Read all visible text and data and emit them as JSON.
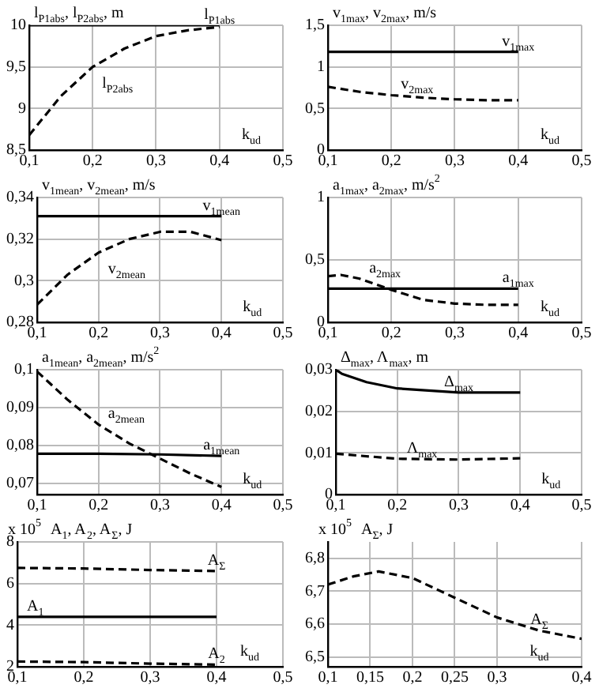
{
  "chart_data": [
    {
      "type": "line",
      "ylabel": "l$_{P1abs}$, l$_{P2abs}$, m",
      "xlabel": "k$_{ud}$",
      "xlim": [
        0.1,
        0.5
      ],
      "xticks": [
        {
          "value": 0.1,
          "label": "0,1"
        },
        {
          "value": 0.2,
          "label": "0,2"
        },
        {
          "value": 0.3,
          "label": "0,3"
        },
        {
          "value": 0.4,
          "label": "0,4"
        },
        {
          "value": 0.5,
          "label": "0,5"
        }
      ],
      "ylim": [
        8.5,
        10
      ],
      "yticks": [
        {
          "value": 8.5,
          "label": "8,5"
        },
        {
          "value": 9,
          "label": "9"
        },
        {
          "value": 9.5,
          "label": "9,5"
        },
        {
          "value": 10,
          "label": "10"
        }
      ],
      "grid": true,
      "legend": false,
      "series": [
        {
          "name": "l$_{P1abs}$",
          "color": "#000000",
          "line_style": "solid",
          "x": [
            0.1,
            0.4
          ],
          "values": [
            10,
            10
          ]
        },
        {
          "name": "l$_{P2abs}$",
          "color": "#000000",
          "line_style": "dashed",
          "x": [
            0.1,
            0.15,
            0.2,
            0.25,
            0.3,
            0.35,
            0.4
          ],
          "values": [
            8.68,
            9.15,
            9.5,
            9.72,
            9.87,
            9.94,
            9.98
          ]
        }
      ]
    },
    {
      "type": "line",
      "ylabel": "v$_{1max}$, v$_{2max}$, m/s",
      "xlabel": "k$_{ud}$",
      "xlim": [
        0.1,
        0.5
      ],
      "xticks": [
        {
          "value": 0.1,
          "label": "0,1"
        },
        {
          "value": 0.2,
          "label": "0,2"
        },
        {
          "value": 0.3,
          "label": "0,3"
        },
        {
          "value": 0.4,
          "label": "0,4"
        },
        {
          "value": 0.5,
          "label": "0,5"
        }
      ],
      "ylim": [
        0,
        1.5
      ],
      "yticks": [
        {
          "value": 0,
          "label": "0"
        },
        {
          "value": 0.5,
          "label": "0,5"
        },
        {
          "value": 1,
          "label": "1"
        },
        {
          "value": 1.5,
          "label": "1,5"
        }
      ],
      "grid": true,
      "legend": false,
      "series": [
        {
          "name": "v$_{1max}$",
          "color": "#000000",
          "line_style": "solid",
          "x": [
            0.1,
            0.4
          ],
          "values": [
            1.18,
            1.18
          ]
        },
        {
          "name": "v$_{2max}$",
          "color": "#000000",
          "line_style": "dashed",
          "x": [
            0.1,
            0.15,
            0.2,
            0.25,
            0.3,
            0.35,
            0.4
          ],
          "values": [
            0.76,
            0.7,
            0.66,
            0.63,
            0.61,
            0.6,
            0.6
          ]
        }
      ]
    },
    {
      "type": "line",
      "ylabel": "v$_{1mean}$, v$_{2mean}$, m/s",
      "xlabel": "k$_{ud}$",
      "xlim": [
        0.1,
        0.5
      ],
      "xticks": [
        {
          "value": 0.1,
          "label": "0,1"
        },
        {
          "value": 0.2,
          "label": "0,2"
        },
        {
          "value": 0.3,
          "label": "0,3"
        },
        {
          "value": 0.4,
          "label": "0,4"
        },
        {
          "value": 0.5,
          "label": "0,5"
        }
      ],
      "ylim": [
        0.28,
        0.34
      ],
      "yticks": [
        {
          "value": 0.28,
          "label": "0,28"
        },
        {
          "value": 0.3,
          "label": "0,3"
        },
        {
          "value": 0.32,
          "label": "0,32"
        },
        {
          "value": 0.34,
          "label": "0,34"
        }
      ],
      "grid": true,
      "legend": false,
      "series": [
        {
          "name": "v$_{1mean}$",
          "color": "#000000",
          "line_style": "solid",
          "x": [
            0.1,
            0.4
          ],
          "values": [
            0.331,
            0.331
          ]
        },
        {
          "name": "v$_{2mean}$",
          "color": "#000000",
          "line_style": "dashed",
          "x": [
            0.1,
            0.15,
            0.2,
            0.25,
            0.3,
            0.35,
            0.4
          ],
          "values": [
            0.2885,
            0.303,
            0.3135,
            0.32,
            0.3235,
            0.3235,
            0.3195
          ]
        }
      ]
    },
    {
      "type": "line",
      "ylabel": "a$_{1max}$, a$_{2max}$, m/s$^{2}$",
      "xlabel": "k$_{ud}$",
      "xlim": [
        0.1,
        0.5
      ],
      "xticks": [
        {
          "value": 0.1,
          "label": "0,1"
        },
        {
          "value": 0.2,
          "label": "0,2"
        },
        {
          "value": 0.3,
          "label": "0,3"
        },
        {
          "value": 0.4,
          "label": "0,4"
        },
        {
          "value": 0.5,
          "label": "0,5"
        }
      ],
      "ylim": [
        0,
        1
      ],
      "yticks": [
        {
          "value": 0,
          "label": "0"
        },
        {
          "value": 0.5,
          "label": "0,5"
        },
        {
          "value": 1,
          "label": "1"
        }
      ],
      "grid": true,
      "legend": false,
      "series": [
        {
          "name": "a$_{1max}$",
          "color": "#000000",
          "line_style": "solid",
          "x": [
            0.1,
            0.4
          ],
          "values": [
            0.27,
            0.27
          ]
        },
        {
          "name": "a$_{2max}$",
          "color": "#000000",
          "line_style": "dashed",
          "x": [
            0.1,
            0.12,
            0.15,
            0.2,
            0.25,
            0.3,
            0.35,
            0.4
          ],
          "values": [
            0.37,
            0.38,
            0.35,
            0.26,
            0.18,
            0.15,
            0.14,
            0.14
          ]
        }
      ]
    },
    {
      "type": "line",
      "ylabel": "a$_{1mean}$, a$_{2mean}$, m/s$^{2}$",
      "xlabel": "k$_{ud}$",
      "xlim": [
        0.1,
        0.5
      ],
      "xticks": [
        {
          "value": 0.1,
          "label": "0,1"
        },
        {
          "value": 0.2,
          "label": "0,2"
        },
        {
          "value": 0.3,
          "label": "0,3"
        },
        {
          "value": 0.4,
          "label": "0,4"
        },
        {
          "value": 0.5,
          "label": "0,5"
        }
      ],
      "ylim": [
        0.067,
        0.1
      ],
      "yticks": [
        {
          "value": 0.07,
          "label": "0,07"
        },
        {
          "value": 0.08,
          "label": "0,08"
        },
        {
          "value": 0.09,
          "label": "0,09"
        },
        {
          "value": 0.1,
          "label": "0,1"
        }
      ],
      "grid": true,
      "legend": false,
      "series": [
        {
          "name": "a$_{1mean}$",
          "color": "#000000",
          "line_style": "solid",
          "x": [
            0.1,
            0.2,
            0.3,
            0.4
          ],
          "values": [
            0.0778,
            0.0778,
            0.0776,
            0.0772
          ]
        },
        {
          "name": "a$_{2mean}$",
          "color": "#000000",
          "line_style": "dashed",
          "x": [
            0.1,
            0.15,
            0.2,
            0.25,
            0.3,
            0.35,
            0.4
          ],
          "values": [
            0.0995,
            0.092,
            0.0855,
            0.0805,
            0.0765,
            0.0725,
            0.069
          ]
        }
      ]
    },
    {
      "type": "line",
      "ylabel": "Δ$_{max}$, Λ$_{max}$, m",
      "xlabel": "k$_{ud}$",
      "xlim": [
        0.1,
        0.5
      ],
      "xticks": [
        {
          "value": 0.1,
          "label": "0,1"
        },
        {
          "value": 0.2,
          "label": "0,2"
        },
        {
          "value": 0.3,
          "label": "0,3"
        },
        {
          "value": 0.4,
          "label": "0,4"
        },
        {
          "value": 0.5,
          "label": "0,5"
        }
      ],
      "ylim": [
        0,
        0.03
      ],
      "yticks": [
        {
          "value": 0,
          "label": "0"
        },
        {
          "value": 0.01,
          "label": "0,01"
        },
        {
          "value": 0.02,
          "label": "0,02"
        },
        {
          "value": 0.03,
          "label": "0,03"
        }
      ],
      "grid": true,
      "legend": false,
      "series": [
        {
          "name": "Δ$_{max}$",
          "color": "#000000",
          "line_style": "solid",
          "x": [
            0.1,
            0.11,
            0.15,
            0.2,
            0.3,
            0.4
          ],
          "values": [
            0.03,
            0.029,
            0.027,
            0.0255,
            0.0245,
            0.0245
          ]
        },
        {
          "name": "Λ$_{max}$",
          "color": "#000000",
          "line_style": "dashed",
          "x": [
            0.1,
            0.2,
            0.3,
            0.4
          ],
          "values": [
            0.0098,
            0.0086,
            0.0084,
            0.0087
          ]
        }
      ]
    },
    {
      "type": "line",
      "ylabel": "A$_{1}$, A$_{2}$, A$_{Σ}$, J",
      "xlabel": "k$_{ud}$",
      "annotations": [
        "x 10$^{5}$"
      ],
      "xlim": [
        0.1,
        0.5
      ],
      "xticks": [
        {
          "value": 0.1,
          "label": "0,1"
        },
        {
          "value": 0.2,
          "label": "0,2"
        },
        {
          "value": 0.3,
          "label": "0,3"
        },
        {
          "value": 0.4,
          "label": "0,4"
        },
        {
          "value": 0.5,
          "label": "0,5"
        }
      ],
      "ylim": [
        2,
        8
      ],
      "yticks": [
        2,
        4,
        6,
        8
      ],
      "grid": true,
      "legend": false,
      "series": [
        {
          "name": "A$_{Σ}$",
          "color": "#000000",
          "line_style": "dashed",
          "x": [
            0.1,
            0.2,
            0.3,
            0.4
          ],
          "values": [
            6.75,
            6.72,
            6.65,
            6.6
          ]
        },
        {
          "name": "A$_{1}$",
          "color": "#000000",
          "line_style": "solid",
          "x": [
            0.1,
            0.4
          ],
          "values": [
            4.4,
            4.4
          ]
        },
        {
          "name": "A$_{2}$",
          "color": "#000000",
          "line_style": "dashed",
          "x": [
            0.1,
            0.2,
            0.3,
            0.4
          ],
          "values": [
            2.25,
            2.22,
            2.15,
            2.1
          ]
        }
      ]
    },
    {
      "type": "line",
      "ylabel": "A$_{Σ}$, J",
      "xlabel": "k$_{ud}$",
      "annotations": [
        "x 10$^{5}$"
      ],
      "xlim": [
        0.1,
        0.4
      ],
      "xticks": [
        {
          "value": 0.1,
          "label": "0,1"
        },
        {
          "value": 0.15,
          "label": "0,15"
        },
        {
          "value": 0.2,
          "label": "0,2"
        },
        {
          "value": 0.25,
          "label": "0,25"
        },
        {
          "value": 0.3,
          "label": "0,3"
        },
        {
          "value": 0.4,
          "label": "0,4"
        }
      ],
      "ylim": [
        6.47,
        6.85
      ],
      "yticks": [
        {
          "value": 6.5,
          "label": "6,5"
        },
        {
          "value": 6.6,
          "label": "6,6"
        },
        {
          "value": 6.7,
          "label": "6,7"
        },
        {
          "value": 6.8,
          "label": "6,8"
        }
      ],
      "grid": true,
      "legend": false,
      "series": [
        {
          "name": "A$_{Σ}$",
          "color": "#000000",
          "line_style": "dashed",
          "x": [
            0.1,
            0.13,
            0.16,
            0.2,
            0.25,
            0.3,
            0.35,
            0.4
          ],
          "values": [
            6.72,
            6.745,
            6.76,
            6.74,
            6.68,
            6.62,
            6.58,
            6.555
          ]
        }
      ]
    }
  ]
}
